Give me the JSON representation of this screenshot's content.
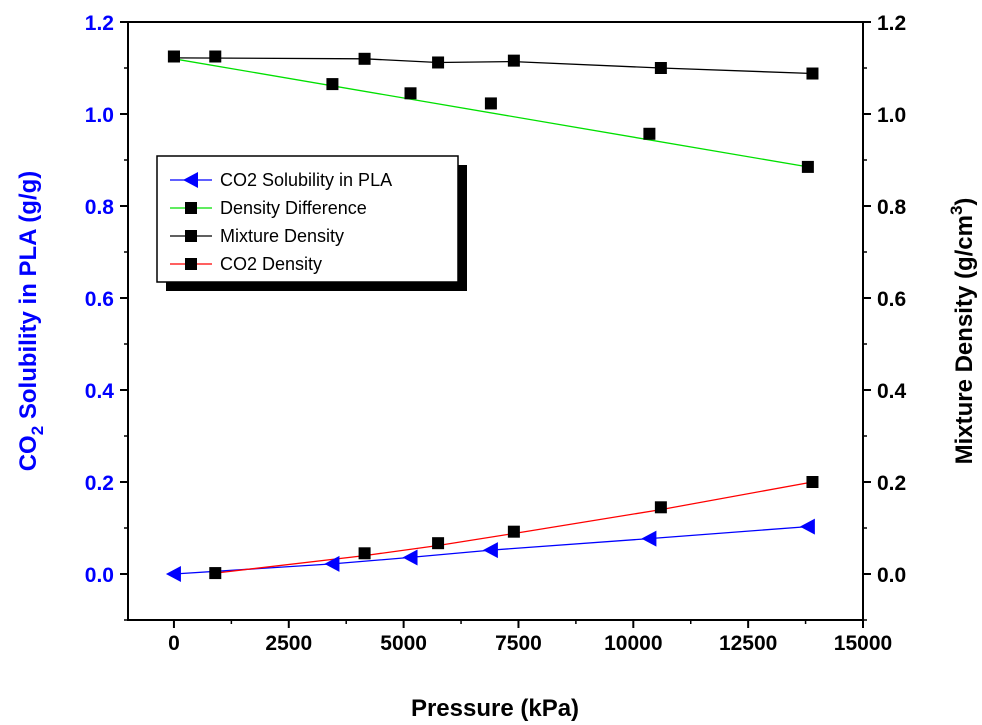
{
  "chart_data": {
    "type": "line",
    "x_axis": {
      "label": "Pressure (kPa)",
      "range": [
        -1000,
        15000
      ],
      "ticks": [
        0,
        2500,
        5000,
        7500,
        10000,
        12500,
        15000
      ],
      "tick_labels": [
        "0",
        "2500",
        "5000",
        "7500",
        "10000",
        "12500",
        "15000"
      ]
    },
    "y_axis_left": {
      "label_parts": [
        "CO",
        "2",
        " Solubility in PLA (g/g)"
      ],
      "range": [
        -0.1,
        1.2
      ],
      "ticks": [
        0.0,
        0.2,
        0.4,
        0.6,
        0.8,
        1.0,
        1.2
      ],
      "tick_labels": [
        "0.0",
        "0.2",
        "0.4",
        "0.6",
        "0.8",
        "1.0",
        "1.2"
      ],
      "color": "#0000ff"
    },
    "y_axis_right": {
      "label_parts": [
        "Mixture Density (g/cm",
        "3",
        ")"
      ],
      "range": [
        -0.1,
        1.2
      ],
      "ticks": [
        0.0,
        0.2,
        0.4,
        0.6,
        0.8,
        1.0,
        1.2
      ],
      "tick_labels": [
        "0.0",
        "0.2",
        "0.4",
        "0.6",
        "0.8",
        "1.0",
        "1.2"
      ],
      "color": "#000000"
    },
    "series": [
      {
        "name": "CO2 Solubility in PLA",
        "axis": "left",
        "line_color": "#0000ff",
        "marker": "triangle-left",
        "marker_color": "#0000ff",
        "points": [
          [
            0,
            0.0
          ],
          [
            3450,
            0.022
          ],
          [
            5150,
            0.036
          ],
          [
            6900,
            0.052
          ],
          [
            10350,
            0.077
          ],
          [
            13800,
            0.103
          ]
        ],
        "line": [
          [
            0,
            0.0
          ],
          [
            3450,
            0.022
          ],
          [
            5150,
            0.036
          ],
          [
            6900,
            0.052
          ],
          [
            10350,
            0.077
          ],
          [
            13800,
            0.103
          ]
        ]
      },
      {
        "name": "Density Difference",
        "axis": "right",
        "line_color": "#00e000",
        "marker": "square",
        "marker_color": "#000000",
        "points": [
          [
            0,
            1.125
          ],
          [
            3450,
            1.065
          ],
          [
            5150,
            1.045
          ],
          [
            6900,
            1.023
          ],
          [
            10350,
            0.957
          ],
          [
            13800,
            0.885
          ]
        ],
        "line": [
          [
            0,
            1.12
          ],
          [
            13800,
            0.885
          ]
        ]
      },
      {
        "name": "Mixture Density",
        "axis": "right",
        "line_color": "#000000",
        "marker": "square",
        "marker_color": "#000000",
        "points": [
          [
            0,
            1.125
          ],
          [
            900,
            1.125
          ],
          [
            4150,
            1.12
          ],
          [
            5750,
            1.112
          ],
          [
            7400,
            1.116
          ],
          [
            10600,
            1.1
          ],
          [
            13900,
            1.088
          ]
        ],
        "line": [
          [
            0,
            1.122
          ],
          [
            4150,
            1.12
          ],
          [
            5750,
            1.112
          ],
          [
            7400,
            1.114
          ],
          [
            10600,
            1.1
          ],
          [
            13900,
            1.088
          ]
        ]
      },
      {
        "name": "CO2 Density",
        "axis": "right",
        "line_color": "#ff0000",
        "marker": "square",
        "marker_color": "#000000",
        "points": [
          [
            900,
            0.002
          ],
          [
            4150,
            0.045
          ],
          [
            5750,
            0.067
          ],
          [
            7400,
            0.092
          ],
          [
            10600,
            0.145
          ],
          [
            13900,
            0.2
          ]
        ],
        "line": [
          [
            900,
            0.002
          ],
          [
            4150,
            0.04
          ],
          [
            5750,
            0.062
          ],
          [
            7400,
            0.088
          ],
          [
            10600,
            0.14
          ],
          [
            13900,
            0.2
          ]
        ]
      }
    ],
    "legend": {
      "placement": "upper-left",
      "entries": [
        "CO2 Solubility in PLA",
        "Density Difference",
        "Mixture Density",
        "CO2 Density"
      ]
    },
    "grid": false
  }
}
